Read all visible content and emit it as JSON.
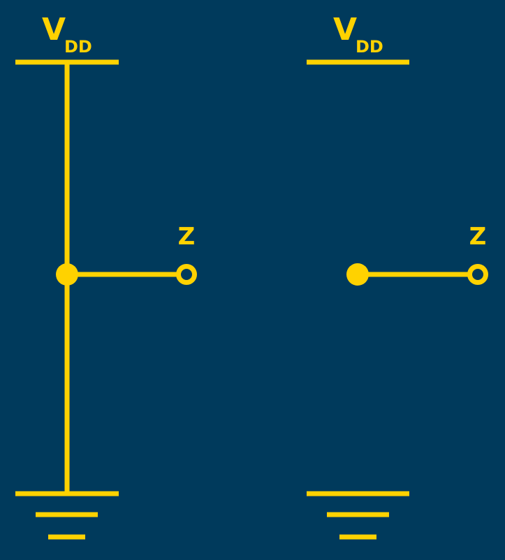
{
  "colors": {
    "background": "#003a5c",
    "wire": "#ffd200"
  },
  "circuits": [
    {
      "supply_label": {
        "main": "V",
        "sub": "DD"
      },
      "output_label": "Z",
      "connected_to_supply_and_ground": true
    },
    {
      "supply_label": {
        "main": "V",
        "sub": "DD"
      },
      "output_label": "Z",
      "connected_to_supply_and_ground": false
    }
  ]
}
